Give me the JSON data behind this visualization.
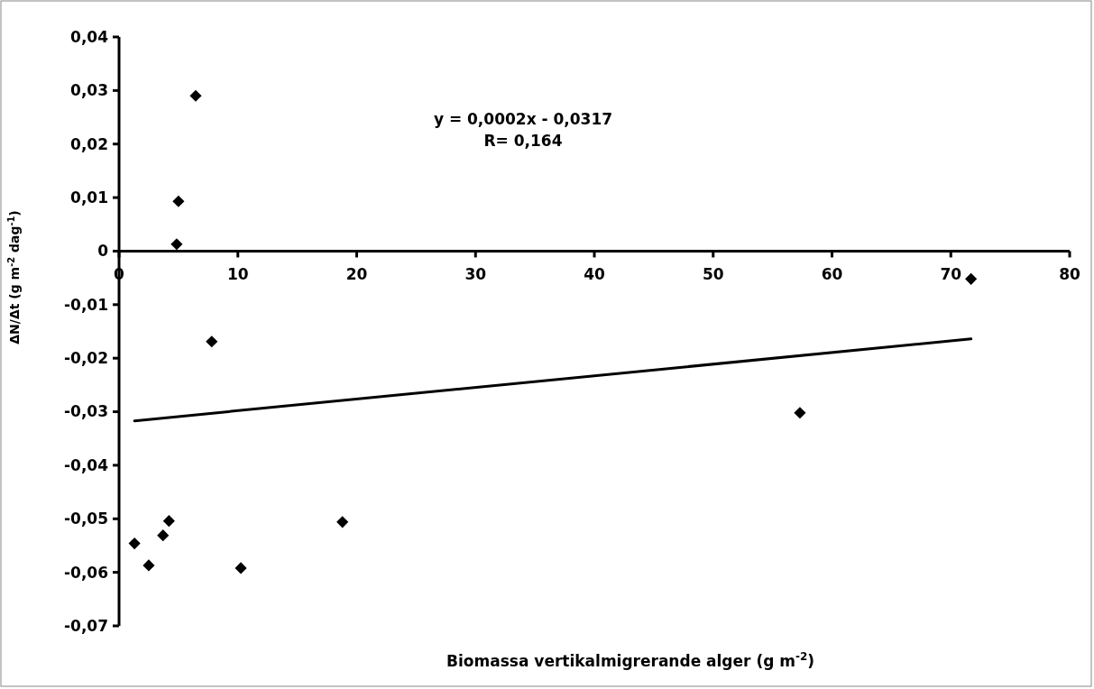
{
  "chart_data": {
    "type": "scatter",
    "xlabel": "Biomassa vertikalmigrerande alger (g m$^{-2}$)",
    "ylabel": "ΔN/Δt (g m$^{-2}$ dag$^{-1}$)",
    "annotations": [
      "y = 0,0002x - 0,0317",
      "R= 0,164"
    ],
    "xlim": [
      0,
      80
    ],
    "xticks": [
      0,
      10,
      20,
      30,
      40,
      50,
      60,
      70,
      80
    ],
    "ylim": [
      -0.07,
      0.04
    ],
    "yticks": [
      {
        "value": -0.07,
        "label": "-0,07"
      },
      {
        "value": -0.06,
        "label": "-0,06"
      },
      {
        "value": -0.05,
        "label": "-0,05"
      },
      {
        "value": -0.04,
        "label": "-0,04"
      },
      {
        "value": -0.03,
        "label": "-0,03"
      },
      {
        "value": -0.02,
        "label": "-0,02"
      },
      {
        "value": -0.01,
        "label": "-0,01"
      },
      {
        "value": 0,
        "label": "0"
      },
      {
        "value": 0.01,
        "label": "0,01"
      },
      {
        "value": 0.02,
        "label": "0,02"
      },
      {
        "value": 0.03,
        "label": "0,03"
      },
      {
        "value": 0.04,
        "label": "0,04"
      }
    ],
    "grid": false,
    "series": [
      {
        "color": "#000000",
        "marker": "diamond",
        "x": [
          6.45,
          5.0,
          4.85,
          7.8,
          71.7,
          57.3,
          1.3,
          2.5,
          3.7,
          4.2,
          10.25,
          18.8
        ],
        "values": [
          0.029,
          0.0093,
          0.0013,
          -0.0169,
          -0.0052,
          -0.0302,
          -0.0546,
          -0.0587,
          -0.0531,
          -0.0504,
          -0.0592,
          -0.0506
        ]
      },
      {
        "type": "line",
        "color": "#000000",
        "marker": "none",
        "line_style": "solid",
        "x": [
          1.3,
          71.7
        ],
        "values": [
          -0.0317,
          -0.0164
        ]
      }
    ]
  }
}
